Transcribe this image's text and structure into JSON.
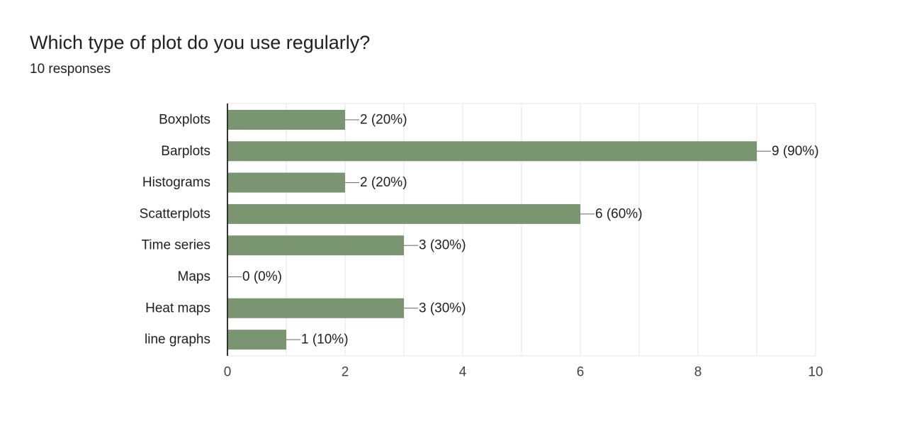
{
  "question": {
    "title": "Which type of plot do you use regularly?",
    "responses": "10 responses"
  },
  "colors": {
    "bar": "#7a9670",
    "grid": "#e6e6e6",
    "axis": "#333333",
    "label": "#202124",
    "tick": "#444444",
    "leader": "#666666"
  },
  "chart_data": {
    "type": "bar",
    "orientation": "horizontal",
    "title": "Which type of plot do you use regularly?",
    "subtitle": "10 responses",
    "categories": [
      "Boxplots",
      "Barplots",
      "Histograms",
      "Scatterplots",
      "Time series",
      "Maps",
      "Heat maps",
      "line graphs"
    ],
    "values": [
      2,
      9,
      2,
      6,
      3,
      0,
      3,
      1
    ],
    "data_labels": [
      "2 (20%)",
      "9 (90%)",
      "2 (20%)",
      "6 (60%)",
      "3 (30%)",
      "0 (0%)",
      "3 (30%)",
      "1 (10%)"
    ],
    "xlim": [
      0,
      10
    ],
    "xticks": [
      0,
      2,
      4,
      6,
      8,
      10
    ],
    "xtick_labels": [
      "0",
      "2",
      "4",
      "6",
      "8",
      "10"
    ],
    "minor_grid_step": 1,
    "xlabel": "",
    "ylabel": "",
    "grid": true
  }
}
